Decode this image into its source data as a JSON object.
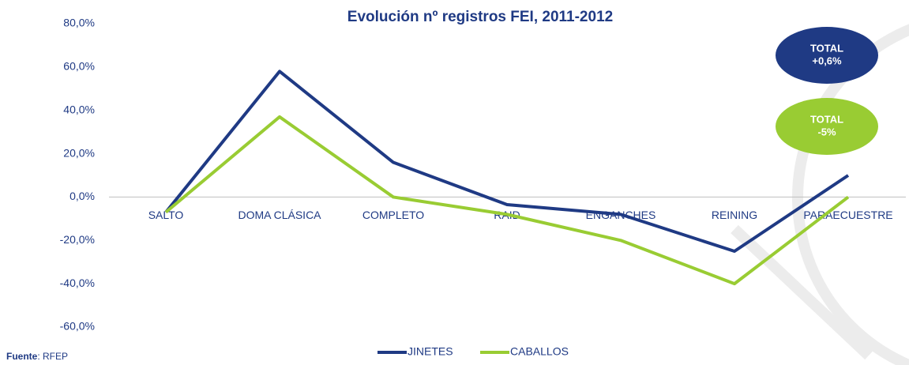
{
  "chart_data": {
    "type": "line",
    "title": "Evolución nº registros FEI, 2011-2012",
    "categories": [
      "SALTO",
      "DOMA CLÁSICA",
      "COMPLETO",
      "RAID",
      "ENGANCHES",
      "REINING",
      "PARAECUESTRE"
    ],
    "series": [
      {
        "name": "JINETES",
        "color": "#1f3a84",
        "values": [
          -7,
          58,
          16,
          -3.5,
          -8,
          -25,
          10
        ]
      },
      {
        "name": "CABALLOS",
        "color": "#99cc33",
        "values": [
          -7,
          37,
          0,
          -8,
          -20,
          -40,
          0
        ]
      }
    ],
    "ylim": [
      -60,
      80
    ],
    "yticks": [
      {
        "value": -60,
        "label": "-60,0%"
      },
      {
        "value": -40,
        "label": "-40,0%"
      },
      {
        "value": -20,
        "label": "-20,0%"
      },
      {
        "value": 0,
        "label": "0,0%"
      },
      {
        "value": 20,
        "label": "20,0%"
      },
      {
        "value": 40,
        "label": "40,0%"
      },
      {
        "value": 60,
        "label": "60,0%"
      },
      {
        "value": 80,
        "label": "80,0%"
      }
    ],
    "legend": "bottom",
    "annotations": [
      {
        "lines": [
          "TOTAL",
          "+0,6%"
        ],
        "color": "#1f3a84"
      },
      {
        "lines": [
          "TOTAL",
          "-5%"
        ],
        "color": "#99cc33"
      }
    ],
    "source": {
      "label": "Fuente",
      "text": ": RFEP"
    }
  }
}
